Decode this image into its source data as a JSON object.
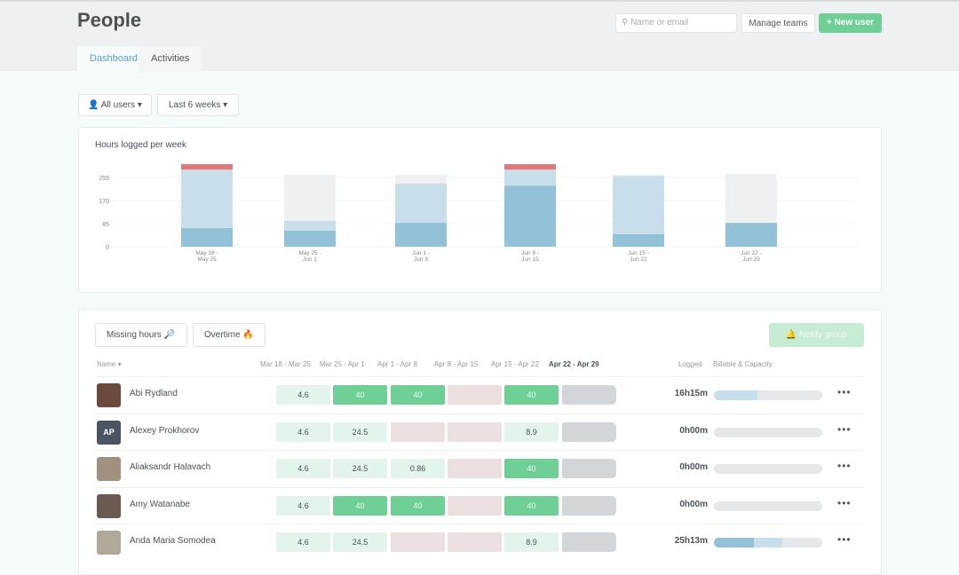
{
  "header": {
    "title": "People",
    "tabs": [
      {
        "label": "Dashboard",
        "active": true
      },
      {
        "label": "Activities",
        "active": false
      }
    ],
    "search_placeholder": "Name or email",
    "manage_teams": "Manage teams",
    "new_user": "+ New user"
  },
  "filters": {
    "users": "All users",
    "period": "Last 6 weeks"
  },
  "colors": {
    "accent": "#6fcf97",
    "billable": "#93c2d8",
    "non_billable": "#c9deeb",
    "capacity": "#eef0f1",
    "overtime": "#e07a7a"
  },
  "chart_data": {
    "type": "bar",
    "stacked": true,
    "title": "Hours logged per week",
    "categories": [
      [
        "May 18 -",
        "May 25"
      ],
      [
        "May 25 -",
        "Jun 1"
      ],
      [
        "Jun 1 -",
        "Jun 8"
      ],
      [
        "Jun 8 -",
        "Jun 15"
      ],
      [
        "Jun 15 -",
        "Jun 22"
      ],
      [
        "Jun 22 -",
        "Jun 29"
      ]
    ],
    "series": [
      {
        "color": "#93c2d8",
        "values": [
          69,
          59,
          88,
          225,
          46,
          88
        ]
      },
      {
        "color": "#c9deeb",
        "values": [
          215,
          36,
          144,
          59,
          215,
          0
        ]
      },
      {
        "color": "#eef0f1",
        "values": [
          0,
          170,
          33,
          0,
          4,
          180
        ]
      },
      {
        "color": "#e07a7a",
        "values": [
          20,
          0,
          0,
          20,
          0,
          0
        ]
      }
    ],
    "yticks": [
      0,
      85,
      170,
      255
    ],
    "ylim": [
      0,
      310
    ],
    "grid": true
  },
  "table": {
    "missing_hours": "Missing hours 🔎",
    "overtime": "Overtime 🔥",
    "notify": "Notify group",
    "name_header": "Name ▾",
    "weeks": [
      "Mar 18 - Mar 25",
      "Mar 25 - Apr 1",
      "Apr  1 - Apr 8",
      "Apr 8 - Apr 15",
      "Apr 15 - Apr 22",
      "Apr 22 - Apr  29"
    ],
    "logged_header": "Logged",
    "capacity_header": "Billable & Capacity",
    "rows": [
      {
        "name": "Abi Rydland",
        "initials": "",
        "cells": [
          [
            "4.6",
            "light"
          ],
          [
            "40",
            "green"
          ],
          [
            "40",
            "green"
          ],
          [
            "",
            "pink"
          ],
          [
            "40",
            "green"
          ],
          [
            "",
            "gray"
          ]
        ],
        "logged": "16h15m",
        "billable": 0,
        "non_billable": 40
      },
      {
        "name": "Alexey Prokhorov",
        "initials": "AP",
        "cells": [
          [
            "4.6",
            "light"
          ],
          [
            "24.5",
            "light"
          ],
          [
            "",
            "pink"
          ],
          [
            "",
            "pink"
          ],
          [
            "8.9",
            "light"
          ],
          [
            "",
            "gray"
          ]
        ],
        "logged": "0h00m",
        "billable": 0,
        "non_billable": 0
      },
      {
        "name": "Aliaksandr Halavach",
        "initials": "",
        "cells": [
          [
            "4.6",
            "light"
          ],
          [
            "24.5",
            "light"
          ],
          [
            "0.86",
            "light"
          ],
          [
            "",
            "pink"
          ],
          [
            "40",
            "green"
          ],
          [
            "",
            "gray"
          ]
        ],
        "logged": "0h00m",
        "billable": 0,
        "non_billable": 0
      },
      {
        "name": "Amy Watanabe",
        "initials": "",
        "cells": [
          [
            "4.6",
            "light"
          ],
          [
            "40",
            "green"
          ],
          [
            "40",
            "green"
          ],
          [
            "",
            "pink"
          ],
          [
            "40",
            "green"
          ],
          [
            "",
            "gray"
          ]
        ],
        "logged": "0h00m",
        "billable": 0,
        "non_billable": 0
      },
      {
        "name": "Anda Maria Somodea",
        "initials": "",
        "cells": [
          [
            "4.6",
            "light"
          ],
          [
            "24.5",
            "light"
          ],
          [
            "",
            "pink"
          ],
          [
            "",
            "pink"
          ],
          [
            "8.9",
            "light"
          ],
          [
            "",
            "gray"
          ]
        ],
        "logged": "25h13m",
        "billable": 37,
        "non_billable": 26
      }
    ]
  }
}
